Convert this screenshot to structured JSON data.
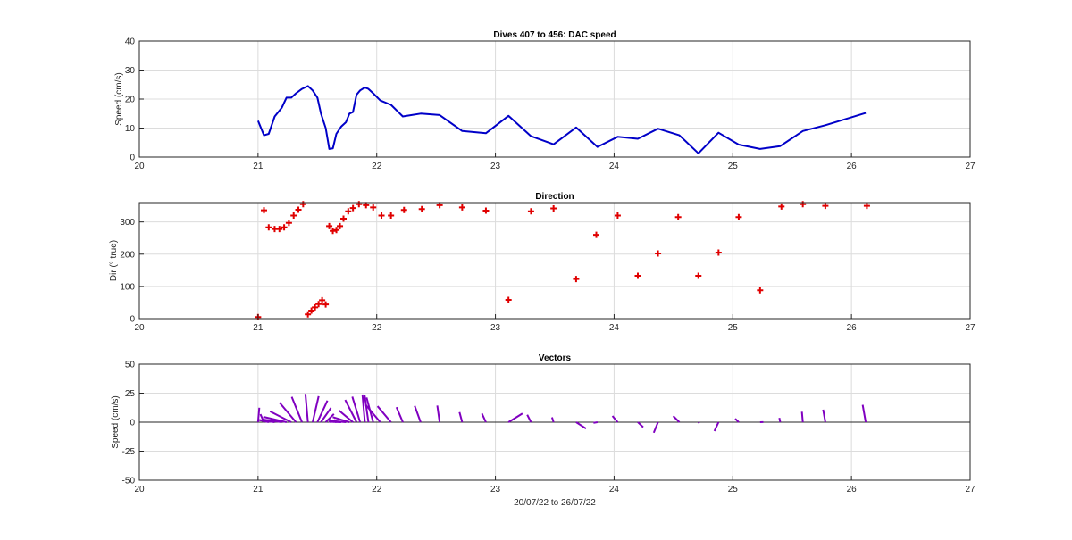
{
  "chart_data": [
    {
      "type": "line",
      "title": "Dives 407 to 456: DAC speed",
      "xlabel": "",
      "ylabel": "Speed (cm/s)",
      "xlim": [
        20,
        27
      ],
      "ylim": [
        0,
        40
      ],
      "xticks": [
        "20",
        "21",
        "22",
        "23",
        "24",
        "25",
        "26",
        "27"
      ],
      "yticks": [
        "0",
        "10",
        "20",
        "30",
        "40"
      ],
      "grid": true,
      "color": "#0000c8",
      "series": [
        {
          "x": [
            21.0,
            21.05,
            21.09,
            21.14,
            21.2,
            21.24,
            21.28,
            21.32,
            21.37,
            21.42,
            21.46,
            21.5,
            21.53,
            21.57,
            21.6,
            21.63,
            21.66,
            21.7,
            21.74,
            21.77,
            21.8,
            21.83,
            21.86,
            21.9,
            21.93,
            21.97,
            22.03,
            22.12,
            22.22,
            22.37,
            22.53,
            22.72,
            22.92,
            23.11,
            23.3,
            23.49,
            23.68,
            23.86,
            24.03,
            24.2,
            24.37,
            24.55,
            24.71,
            24.88,
            25.05,
            25.23,
            25.4,
            25.59,
            25.78,
            26.12
          ],
          "y": [
            12.5,
            7.5,
            8,
            14,
            17,
            20.5,
            20.5,
            22,
            23.5,
            24.5,
            23,
            20.5,
            15,
            10,
            2.8,
            3,
            8,
            10.5,
            12,
            15,
            15.5,
            21.5,
            23,
            24,
            23.5,
            22,
            19.5,
            18,
            14,
            15,
            14.5,
            9,
            8.2,
            14.2,
            7.2,
            4.4,
            10.2,
            3.5,
            7,
            6.3,
            9.8,
            7.5,
            1.3,
            8.4,
            4.3,
            2.8,
            3.8,
            9,
            11,
            15.2
          ]
        }
      ]
    },
    {
      "type": "scatter",
      "title": "Direction",
      "xlabel": "",
      "ylabel": "Dir (° true)",
      "xlim": [
        20,
        27
      ],
      "ylim": [
        0,
        360
      ],
      "xticks": [
        "20",
        "21",
        "22",
        "23",
        "24",
        "25",
        "26",
        "27"
      ],
      "yticks": [
        "0",
        "100",
        "200",
        "300"
      ],
      "grid": true,
      "marker": "+",
      "color": "#e00000",
      "series": [
        {
          "x": [
            21.0,
            21.05,
            21.09,
            21.14,
            21.18,
            21.22,
            21.26,
            21.3,
            21.34,
            21.38,
            21.42,
            21.45,
            21.48,
            21.51,
            21.54,
            21.57,
            21.6,
            21.63,
            21.66,
            21.69,
            21.72,
            21.76,
            21.8,
            21.85,
            21.91,
            21.97,
            22.04,
            22.12,
            22.23,
            22.38,
            22.53,
            22.72,
            22.92,
            23.11,
            23.3,
            23.49,
            23.68,
            23.85,
            24.03,
            24.2,
            24.37,
            24.54,
            24.71,
            24.88,
            25.05,
            25.23,
            25.41,
            25.59,
            25.78,
            26.13
          ],
          "y": [
            5,
            336,
            283,
            278,
            278,
            283,
            297,
            320,
            338,
            355,
            13,
            25,
            35,
            45,
            57,
            44,
            287,
            272,
            275,
            287,
            310,
            333,
            343,
            355,
            352,
            345,
            320,
            320,
            337,
            340,
            352,
            345,
            335,
            58,
            333,
            342,
            123,
            260,
            320,
            133,
            202,
            315,
            133,
            205,
            315,
            88,
            348,
            355,
            350,
            350
          ]
        }
      ]
    },
    {
      "type": "vector",
      "title": "Vectors",
      "xlabel": "20/07/22 to 26/07/22",
      "ylabel": "Speed (cm/s)",
      "xlim": [
        20,
        27
      ],
      "ylim": [
        -50,
        50
      ],
      "xticks": [
        "20",
        "21",
        "22",
        "23",
        "24",
        "25",
        "26",
        "27"
      ],
      "yticks": [
        "-50",
        "-25",
        "0",
        "25",
        "50"
      ],
      "grid": true,
      "color": "#8000c0",
      "series": [
        {
          "x": [
            21.0,
            21.05,
            21.09,
            21.14,
            21.2,
            21.24,
            21.28,
            21.32,
            21.37,
            21.42,
            21.46,
            21.5,
            21.53,
            21.57,
            21.6,
            21.63,
            21.66,
            21.7,
            21.74,
            21.77,
            21.8,
            21.83,
            21.86,
            21.9,
            21.93,
            21.97,
            22.03,
            22.12,
            22.22,
            22.37,
            22.53,
            22.72,
            22.92,
            23.11,
            23.3,
            23.49,
            23.68,
            23.86,
            24.03,
            24.2,
            24.37,
            24.55,
            24.71,
            24.88,
            25.05,
            25.23,
            25.4,
            25.59,
            25.78,
            26.12
          ],
          "speed": [
            12.5,
            7.5,
            8,
            14,
            17,
            20.5,
            20.5,
            22,
            23.5,
            24.5,
            23,
            20.5,
            15,
            10,
            2.8,
            3,
            8,
            10.5,
            12,
            15,
            15.5,
            21.5,
            23,
            24,
            23.5,
            22,
            19.5,
            18,
            14,
            15,
            14.5,
            9,
            8.2,
            14.2,
            7.2,
            4.4,
            10.2,
            3.5,
            7,
            6.3,
            9.8,
            7.5,
            1.3,
            8.4,
            4.3,
            2.8,
            3.8,
            9,
            11,
            15.2
          ],
          "direction": [
            5,
            336,
            283,
            278,
            278,
            283,
            297,
            320,
            338,
            355,
            13,
            25,
            35,
            45,
            57,
            44,
            287,
            272,
            275,
            287,
            310,
            333,
            343,
            355,
            352,
            345,
            320,
            320,
            337,
            340,
            352,
            345,
            335,
            58,
            333,
            342,
            123,
            260,
            320,
            133,
            202,
            315,
            133,
            205,
            315,
            88,
            348,
            355,
            350,
            350
          ]
        }
      ]
    }
  ]
}
